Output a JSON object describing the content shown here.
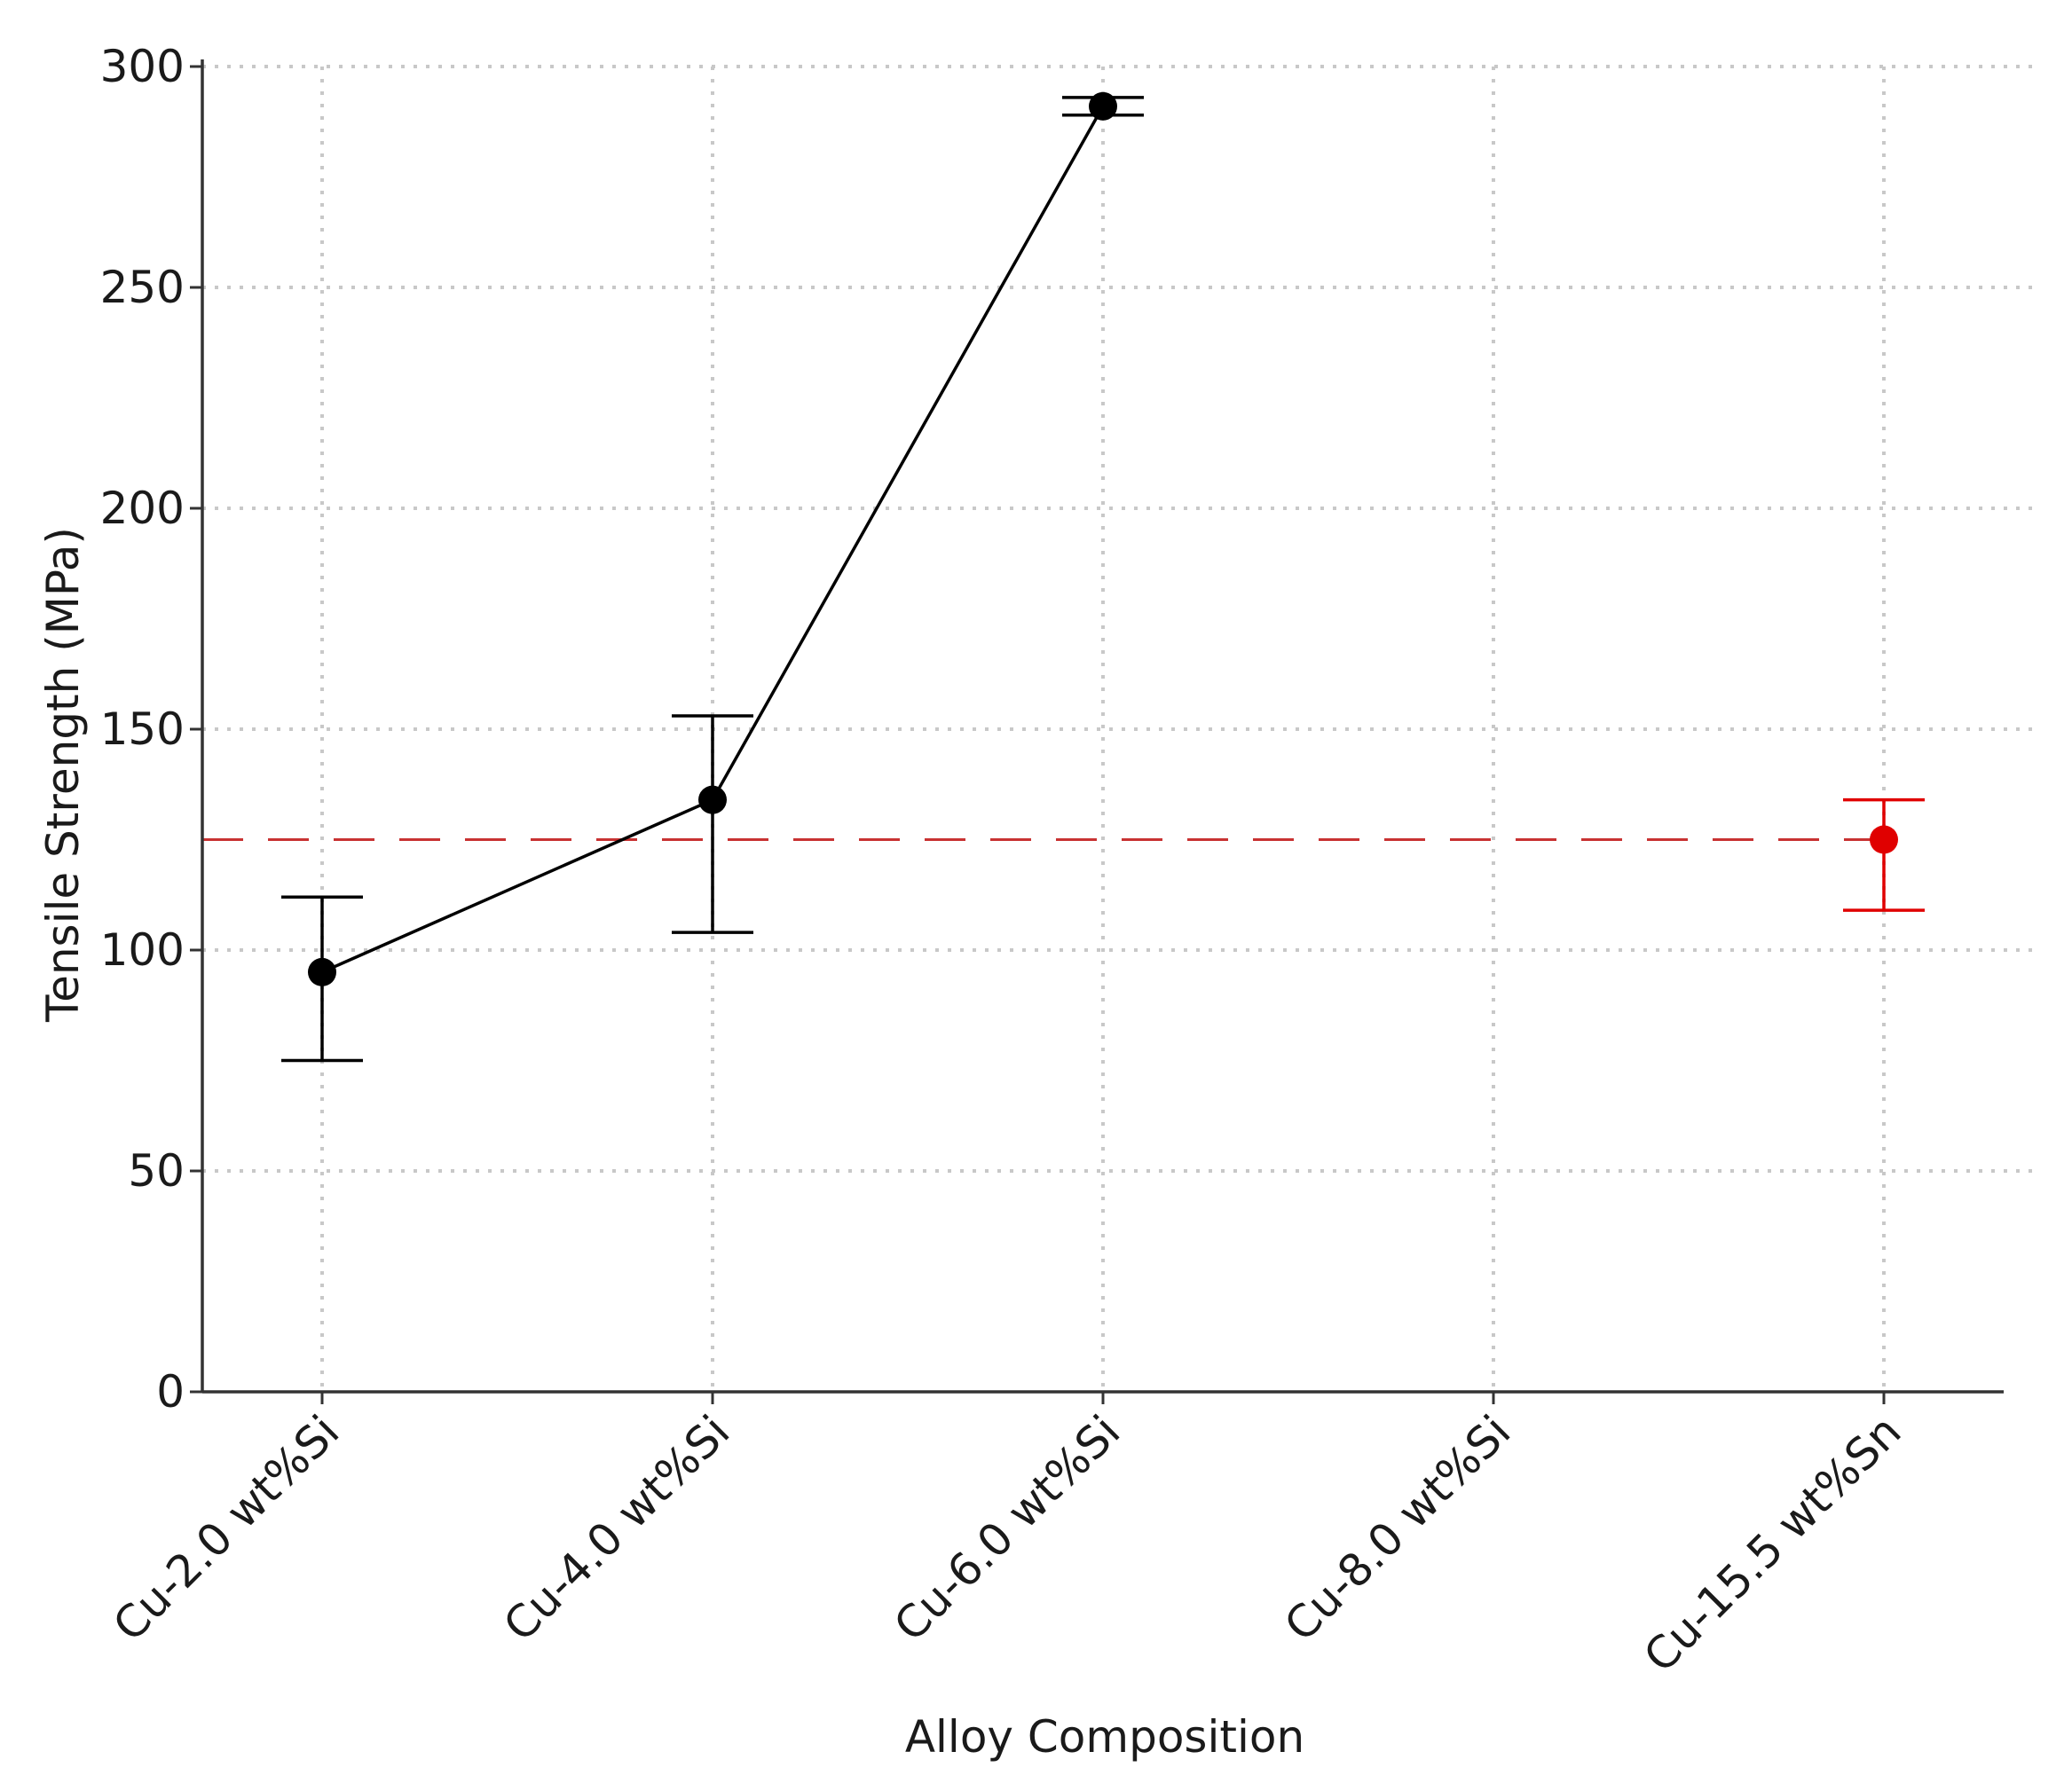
{
  "chart_data": {
    "type": "line",
    "title": "",
    "xlabel": "Alloy Composition",
    "ylabel": "Tensile Strength (MPa)",
    "categories": [
      "Cu-2.0 wt%Si",
      "Cu-4.0 wt%Si",
      "Cu-6.0 wt%Si",
      "Cu-8.0 wt%Si",
      "Cu-15.5 wt%Sn"
    ],
    "ylim": [
      0,
      300
    ],
    "yticks": [
      0,
      50,
      100,
      150,
      200,
      250,
      300
    ],
    "grid": true,
    "series": [
      {
        "color": "#000000",
        "connected": true,
        "points": [
          {
            "category": "Cu-2.0 wt%Si",
            "y": 95,
            "err_low": 75,
            "err_high": 112
          },
          {
            "category": "Cu-4.0 wt%Si",
            "y": 134,
            "err_low": 104,
            "err_high": 153
          },
          {
            "category": "Cu-6.0 wt%Si",
            "y": 291,
            "err_low": 289,
            "err_high": 293
          }
        ]
      },
      {
        "color": "#e00000",
        "connected": false,
        "points": [
          {
            "category": "Cu-15.5 wt%Sn",
            "y": 125,
            "err_low": 109,
            "err_high": 134
          }
        ]
      }
    ],
    "reference_line": {
      "y": 125,
      "color": "#c83232",
      "style": "dashed"
    }
  }
}
